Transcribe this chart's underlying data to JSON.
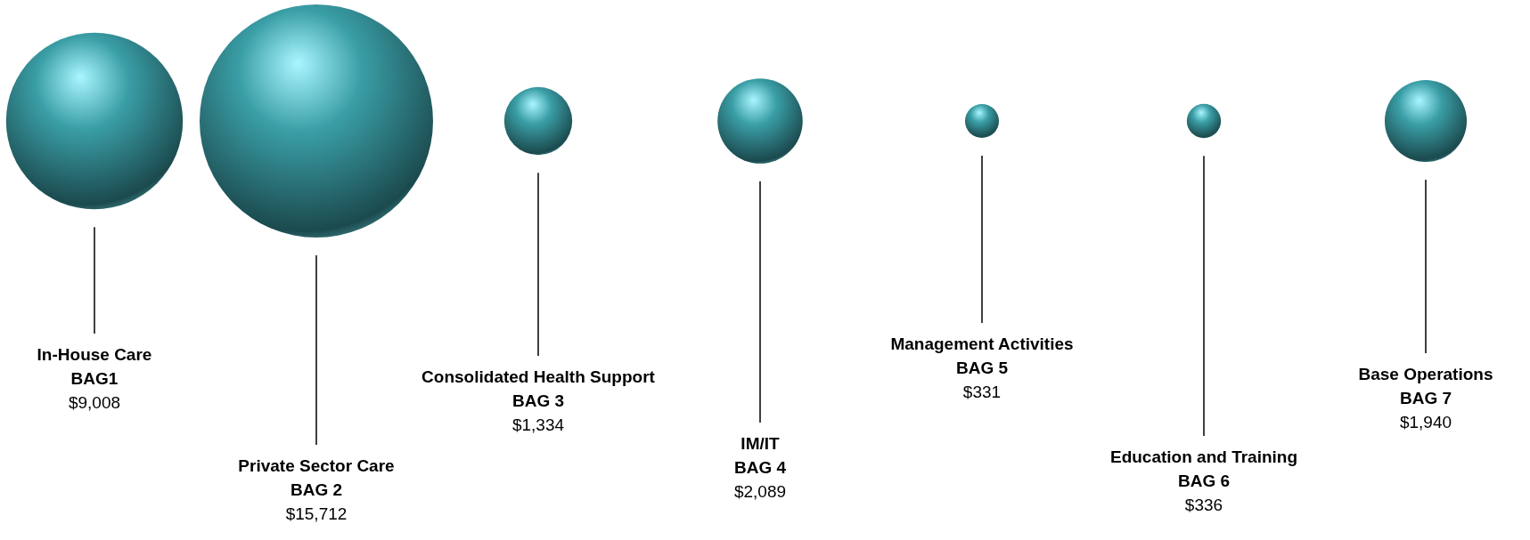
{
  "chart_data": {
    "type": "other",
    "categories": [
      "In-House Care",
      "Private Sector Care",
      "Consolidated Health Support",
      "IM/IT",
      "Management Activities",
      "Education and Training",
      "Base Operations"
    ],
    "values": [
      9008,
      15712,
      1334,
      2089,
      331,
      336,
      1940
    ],
    "value_labels": [
      "$9,008",
      "$15,712",
      "$1,334",
      "$2,089",
      "$331",
      "$336",
      "$1,940"
    ],
    "color": "#3a9ea6",
    "annotations": [
      "BAG1",
      "BAG 2",
      "BAG 3",
      "BAG 4",
      "BAG 5",
      "BAG 6",
      "BAG 7"
    ]
  }
}
